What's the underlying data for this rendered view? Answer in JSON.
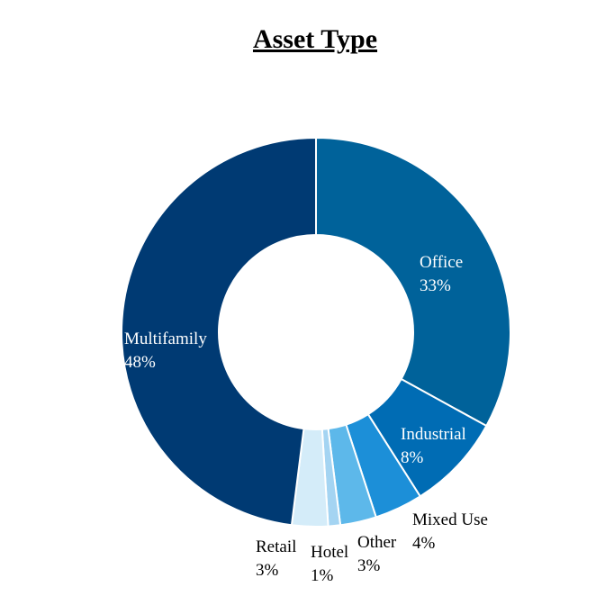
{
  "chart_data": {
    "type": "pie",
    "donut": true,
    "title": "Asset Type",
    "start_angle_deg": 0,
    "direction": "clockwise",
    "legend": "none",
    "slices": [
      {
        "label": "Office",
        "value": 33,
        "value_label": "33%",
        "color": "#00629a",
        "label_color": "#ffffff"
      },
      {
        "label": "Industrial",
        "value": 8,
        "value_label": "8%",
        "color": "#006cb4",
        "label_color": "#ffffff"
      },
      {
        "label": "Mixed Use",
        "value": 4,
        "value_label": "4%",
        "color": "#1c8fd8",
        "label_color": "#000000"
      },
      {
        "label": "Other",
        "value": 3,
        "value_label": "3%",
        "color": "#5db8ea",
        "label_color": "#000000"
      },
      {
        "label": "Hotel",
        "value": 1,
        "value_label": "1%",
        "color": "#a4d4f2",
        "label_color": "#000000"
      },
      {
        "label": "Retail",
        "value": 3,
        "value_label": "3%",
        "color": "#d4ecf9",
        "label_color": "#000000"
      },
      {
        "label": "Multifamily",
        "value": 48,
        "value_label": "48%",
        "color": "#003a73",
        "label_color": "#ffffff"
      }
    ]
  }
}
